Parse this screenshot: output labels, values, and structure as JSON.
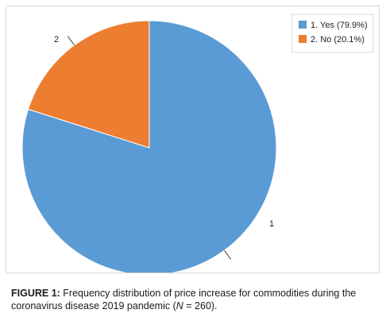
{
  "chart_data": {
    "type": "pie",
    "categories": [
      "1",
      "2"
    ],
    "values": [
      79.9,
      20.1
    ],
    "colors": [
      "#5b9bd5",
      "#ed7d31"
    ],
    "legend": {
      "placement": "top-right",
      "entries": [
        "1. Yes (79.9%)",
        "2. No (20.1%)"
      ]
    },
    "slice_labels": [
      "1",
      "2"
    ]
  },
  "caption": {
    "label": "FIGURE 1:",
    "text_before_n": "Frequency distribution of price increase for commodities during the coronavirus disease 2019 pandemic (",
    "n_symbol": "N",
    "text_after_n": " = 260)."
  }
}
